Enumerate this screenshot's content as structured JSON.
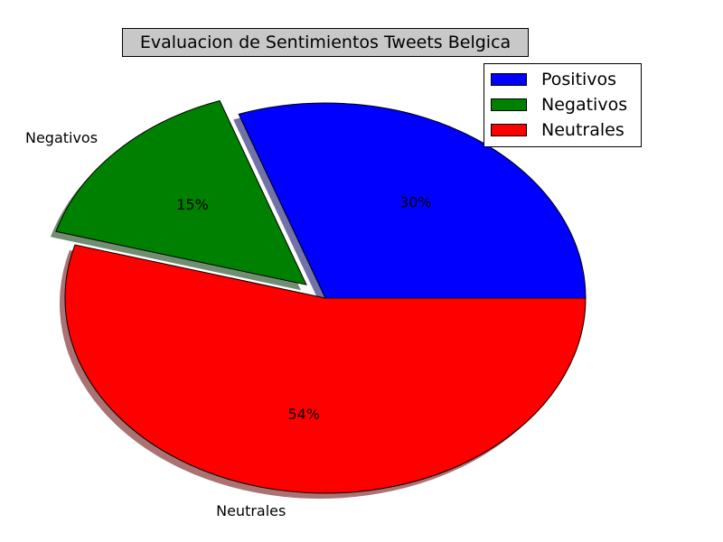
{
  "chart_data": {
    "type": "pie",
    "title": "Evaluacion de Sentimientos Tweets Belgica",
    "categories": [
      "Positivos",
      "Negativos",
      "Neutrales"
    ],
    "values": [
      30.4,
      15.2,
      54.4
    ],
    "percent_labels": [
      "30%",
      "15%",
      "54%"
    ],
    "colors": [
      "#0000ff",
      "#008000",
      "#ff0000"
    ],
    "outer_labels": [
      "",
      "Negativos",
      "Neutrales"
    ],
    "exploded": [
      false,
      true,
      false
    ],
    "shadow": true,
    "legend": {
      "placement": "top-right",
      "entries": [
        "Positivos",
        "Negativos",
        "Neutrales"
      ]
    }
  }
}
